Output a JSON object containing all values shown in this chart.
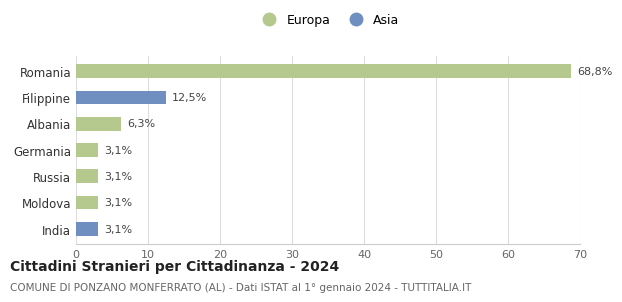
{
  "categories": [
    "Romania",
    "Filippine",
    "Albania",
    "Germania",
    "Russia",
    "Moldova",
    "India"
  ],
  "values": [
    68.8,
    12.5,
    6.3,
    3.1,
    3.1,
    3.1,
    3.1
  ],
  "labels": [
    "68,8%",
    "12,5%",
    "6,3%",
    "3,1%",
    "3,1%",
    "3,1%",
    "3,1%"
  ],
  "colors": [
    "#b5c98e",
    "#6e8fc0",
    "#b5c98e",
    "#b5c98e",
    "#b5c98e",
    "#b5c98e",
    "#6e8fc0"
  ],
  "europa_color": "#b5c98e",
  "asia_color": "#6e8fc0",
  "title_bold": "Cittadini Stranieri per Cittadinanza - 2024",
  "subtitle": "COMUNE DI PONZANO MONFERRATO (AL) - Dati ISTAT al 1° gennaio 2024 - TUTTITALIA.IT",
  "xlim": [
    0,
    70
  ],
  "xticks": [
    0,
    10,
    20,
    30,
    40,
    50,
    60,
    70
  ],
  "background_color": "#ffffff",
  "grid_color": "#dddddd",
  "bar_height": 0.52
}
